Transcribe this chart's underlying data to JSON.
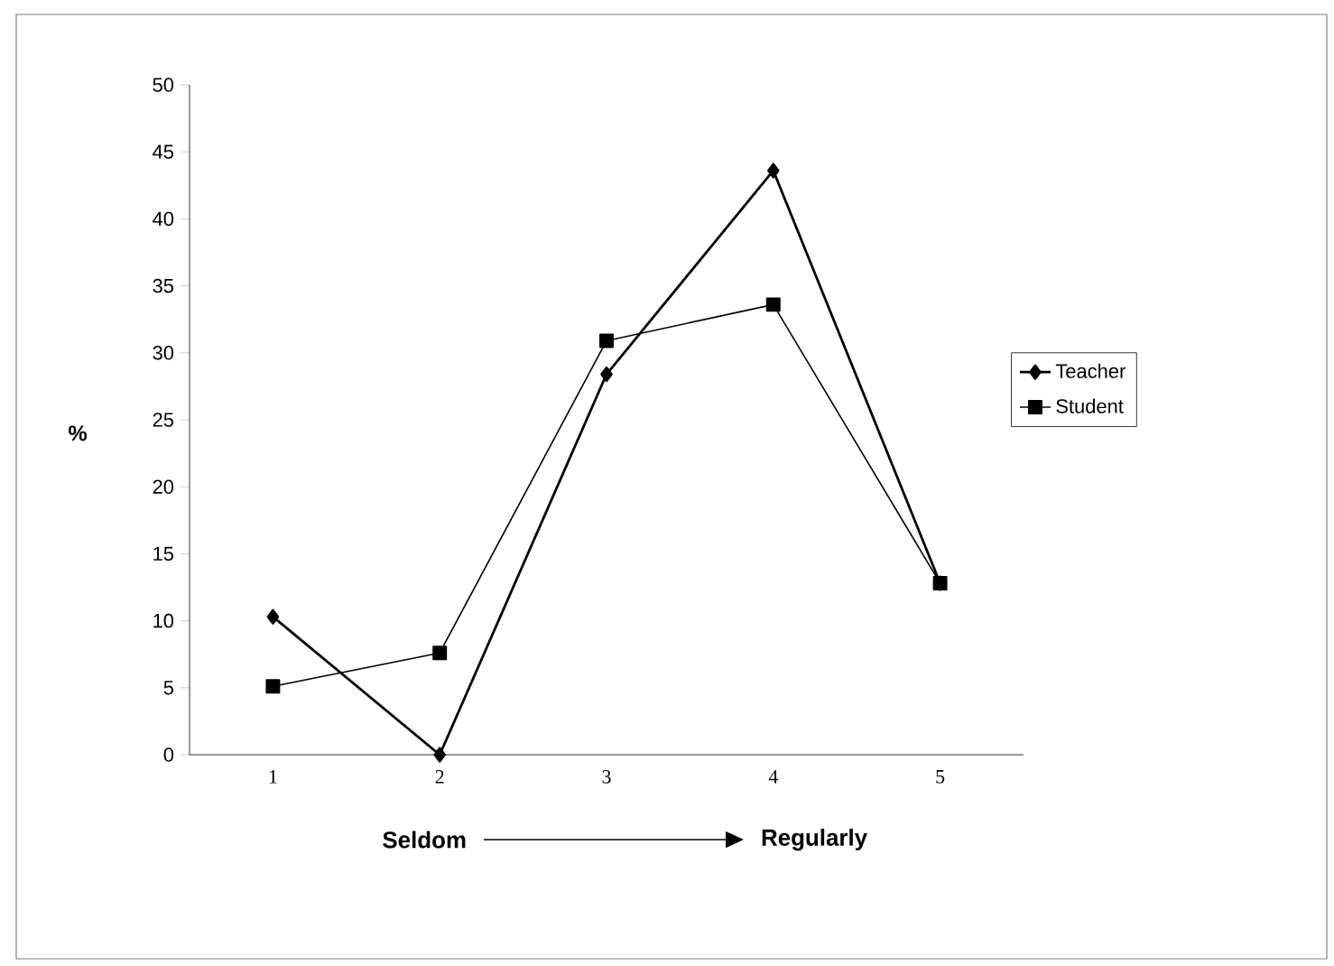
{
  "chart_data": {
    "type": "line",
    "ylabel": "%",
    "categories": [
      "1",
      "2",
      "3",
      "4",
      "5"
    ],
    "series": [
      {
        "name": "Teacher",
        "color": "#000000",
        "marker": "diamond",
        "values": [
          10.3,
          0,
          28.4,
          43.6,
          12.8
        ]
      },
      {
        "name": "Student",
        "color": "#000000",
        "marker": "square",
        "values": [
          5.1,
          7.6,
          30.9,
          33.6,
          12.8
        ]
      }
    ],
    "ylim": [
      0,
      50
    ],
    "yticks": [
      0,
      5,
      10,
      15,
      20,
      25,
      30,
      35,
      40,
      45,
      50
    ],
    "legend": "right",
    "line_style": "solid",
    "annotations": [
      "Seldom",
      "Regularly"
    ]
  }
}
